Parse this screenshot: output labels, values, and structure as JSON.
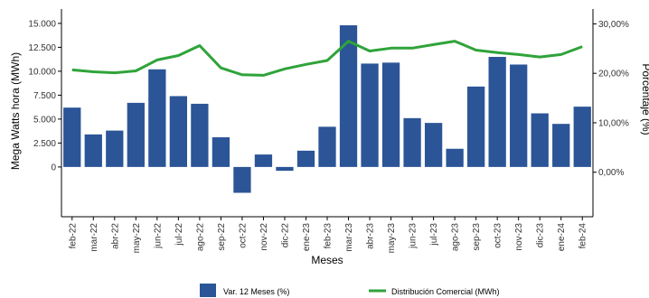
{
  "chart_data": {
    "type": "bar",
    "xlabel": "Meses",
    "ylabel": "Mega Watts hora (MWh)",
    "y2label": "Porcentaje (%)",
    "categories": [
      "feb-22",
      "mar-22",
      "abr-22",
      "may-22",
      "jun-22",
      "jul-22",
      "ago-22",
      "sep-22",
      "oct-22",
      "nov-22",
      "dic-22",
      "ene-23",
      "feb-23",
      "mar-23",
      "abr-23",
      "may-23",
      "jun-23",
      "jul-23",
      "ago-23",
      "sep-23",
      "oct-23",
      "nov-23",
      "dic-23",
      "ene-24",
      "feb-24"
    ],
    "ylim": [
      -5200,
      16500
    ],
    "yticks": [
      0,
      2500,
      5000,
      7500,
      10000,
      12500,
      15000
    ],
    "ytick_labels": [
      "0",
      "2.500",
      "5.000",
      "7.500",
      "10.000",
      "12.500",
      "15.000"
    ],
    "y2lim": [
      -0.09,
      0.33
    ],
    "y2ticks": [
      0,
      0.1,
      0.2,
      0.3
    ],
    "y2tick_labels": [
      "0,00%",
      "10,00%",
      "20,00%",
      "30,00%"
    ],
    "grid": false,
    "legend_position": "bottom",
    "series": [
      {
        "name": "Var. 12 Meses (%)",
        "type": "bar",
        "axis": "left",
        "color": "#2b5597",
        "values": [
          6200,
          3400,
          3800,
          6700,
          10200,
          7400,
          6600,
          3100,
          -2700,
          1300,
          -400,
          1700,
          4200,
          14800,
          10800,
          10900,
          5100,
          4600,
          1900,
          8400,
          11500,
          10700,
          5600,
          4500,
          6300
        ]
      },
      {
        "name": "Distribución Comercial (MWh)",
        "type": "line",
        "axis": "right",
        "color": "#2fa33a",
        "values": [
          0.207,
          0.203,
          0.201,
          0.205,
          0.227,
          0.236,
          0.256,
          0.211,
          0.197,
          0.196,
          0.209,
          0.218,
          0.226,
          0.265,
          0.245,
          0.251,
          0.251,
          0.258,
          0.265,
          0.247,
          0.242,
          0.238,
          0.233,
          0.238,
          0.254
        ]
      }
    ]
  }
}
